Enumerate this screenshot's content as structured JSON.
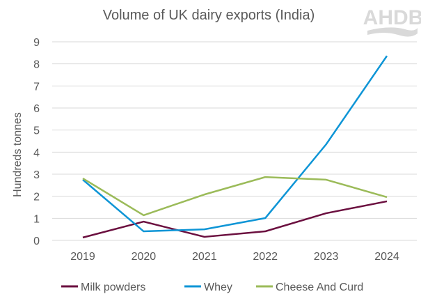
{
  "chart_data": {
    "type": "line",
    "title": "Volume of UK dairy exports (India)",
    "ylabel": "Hundreds tonnes",
    "xlabel": "",
    "categories": [
      "2019",
      "2020",
      "2021",
      "2022",
      "2023",
      "2024"
    ],
    "ylim": [
      0,
      9
    ],
    "yticks": [
      "0",
      "1",
      "2",
      "3",
      "4",
      "5",
      "6",
      "7",
      "8",
      "9"
    ],
    "grid": true,
    "legend_position": "bottom",
    "series": [
      {
        "name": "Milk powders",
        "color": "#6B0F3F",
        "values": [
          0.13,
          0.85,
          0.16,
          0.41,
          1.23,
          1.77
        ]
      },
      {
        "name": "Whey",
        "color": "#0E95D6",
        "values": [
          2.75,
          0.41,
          0.5,
          1.01,
          4.35,
          8.36
        ]
      },
      {
        "name": "Cheese And Curd",
        "color": "#9BBB59",
        "values": [
          2.81,
          1.14,
          2.08,
          2.87,
          2.75,
          1.96
        ]
      }
    ]
  },
  "logo": {
    "text": "AHDB",
    "color": "#D9D9D9"
  }
}
